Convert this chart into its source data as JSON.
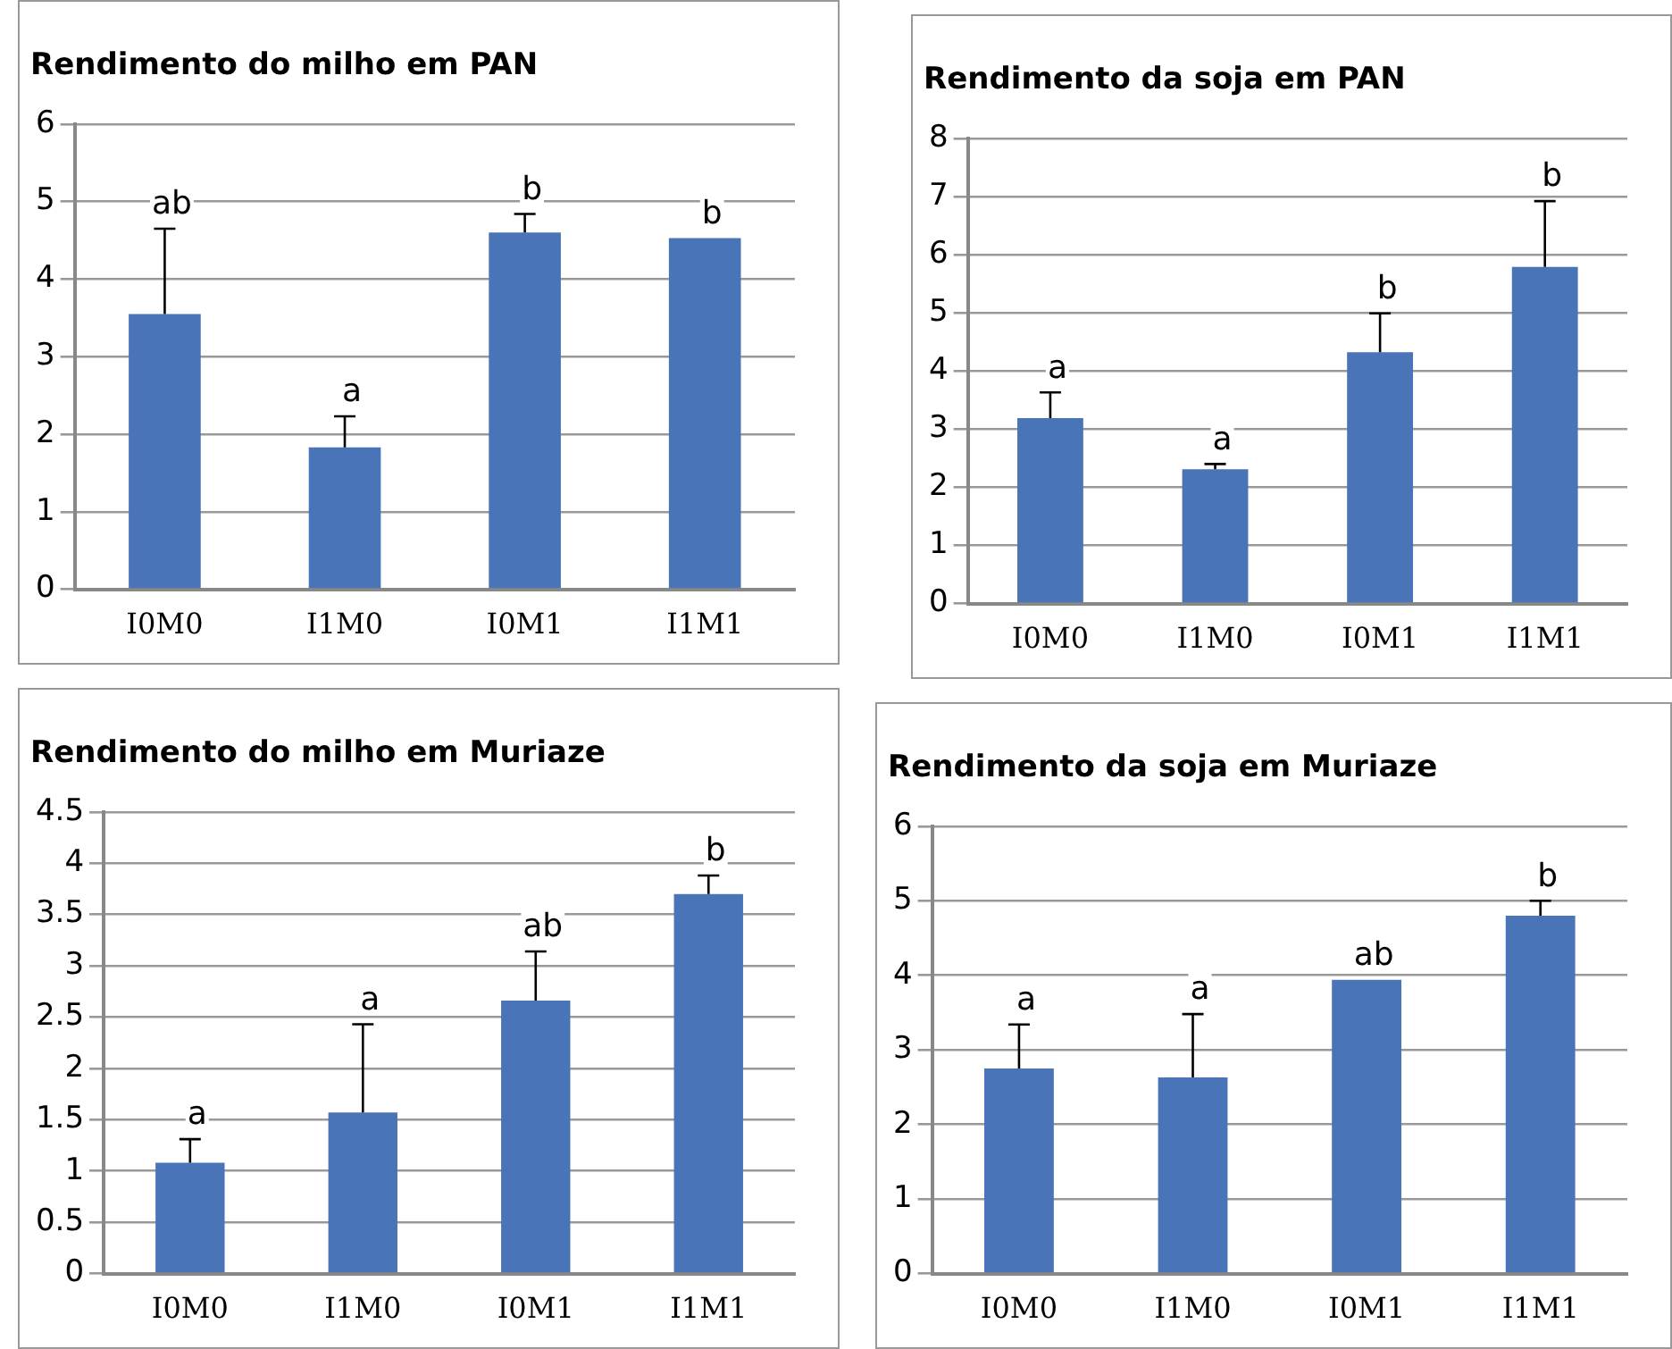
{
  "chart_data": [
    {
      "type": "bar",
      "title": "Rendimento do milho em PAN",
      "categories": [
        "I0M0",
        "I1M0",
        "I0M1",
        "I1M1"
      ],
      "values": [
        3.55,
        1.83,
        4.6,
        4.53
      ],
      "errors": [
        1.1,
        0.4,
        0.24,
        null
      ],
      "color": "#4a74b8",
      "ylim": [
        0,
        6
      ],
      "yticks": [
        0,
        1,
        2,
        3,
        4,
        5,
        6
      ],
      "grid": "y",
      "legend": false,
      "annotations": [
        "ab",
        "a",
        "b",
        "b"
      ]
    },
    {
      "type": "bar",
      "title": "Rendimento da soja em PAN",
      "categories": [
        "I0M0",
        "I1M0",
        "I0M1",
        "I1M1"
      ],
      "values": [
        3.19,
        2.31,
        4.32,
        5.79
      ],
      "errors": [
        0.44,
        0.09,
        0.67,
        1.13
      ],
      "color": "#4a74b8",
      "ylim": [
        0,
        8
      ],
      "yticks": [
        0,
        1,
        2,
        3,
        4,
        5,
        6,
        7,
        8
      ],
      "grid": "y",
      "legend": false,
      "annotations": [
        "a",
        "a",
        "b",
        "b"
      ]
    },
    {
      "type": "bar",
      "title": "Rendimento do milho em Muriaze",
      "categories": [
        "I0M0",
        "I1M0",
        "I0M1",
        "I1M1"
      ],
      "values": [
        1.08,
        1.57,
        2.66,
        3.7
      ],
      "errors": [
        0.23,
        0.86,
        0.48,
        0.18
      ],
      "color": "#4a74b8",
      "ylim": [
        0,
        4.5
      ],
      "yticks": [
        0,
        0.5,
        1,
        1.5,
        2,
        2.5,
        3,
        3.5,
        4,
        4.5
      ],
      "grid": "y",
      "legend": false,
      "annotations": [
        "a",
        "a",
        "ab",
        "b"
      ]
    },
    {
      "type": "bar",
      "title": "Rendimento da soja em Muriaze",
      "categories": [
        "I0M0",
        "I1M0",
        "I0M1",
        "I1M1"
      ],
      "values": [
        2.75,
        2.63,
        3.94,
        4.8
      ],
      "errors": [
        0.59,
        0.85,
        null,
        0.2
      ],
      "color": "#4a74b8",
      "ylim": [
        0,
        6
      ],
      "yticks": [
        0,
        1,
        2,
        3,
        4,
        5,
        6
      ],
      "grid": "y",
      "legend": false,
      "annotations": [
        "a",
        "a",
        "ab",
        "b"
      ]
    }
  ]
}
